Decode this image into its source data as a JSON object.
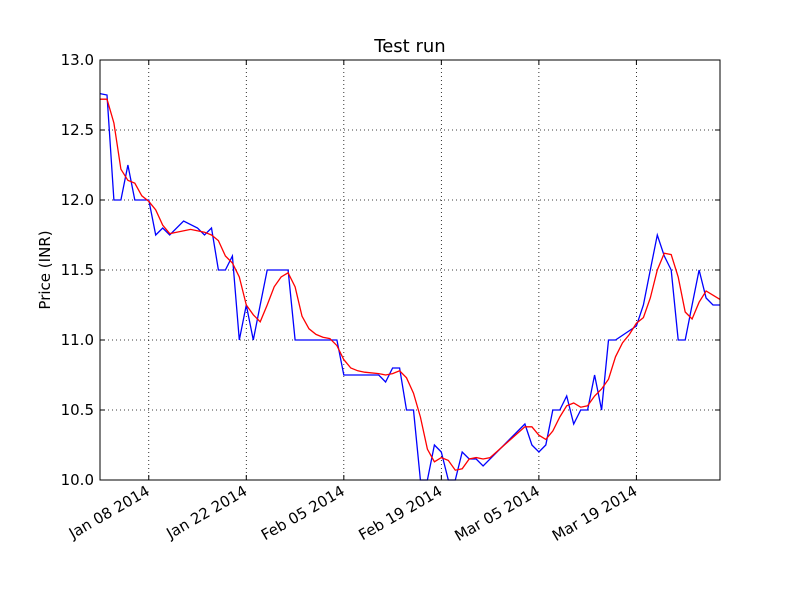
{
  "chart_data": {
    "type": "line",
    "title": "Test run",
    "ylabel": "Price (INR)",
    "xlabel": "",
    "ylim": [
      10.0,
      13.0
    ],
    "xlim": [
      "2014-01-01",
      "2014-03-31"
    ],
    "yticks": [
      "10.0",
      "10.5",
      "11.0",
      "11.5",
      "12.0",
      "12.5",
      "13.0"
    ],
    "xticks": [
      {
        "date": "2014-01-08",
        "label": "Jan 08 2014"
      },
      {
        "date": "2014-01-22",
        "label": "Jan 22 2014"
      },
      {
        "date": "2014-02-05",
        "label": "Feb 05 2014"
      },
      {
        "date": "2014-02-19",
        "label": "Feb 19 2014"
      },
      {
        "date": "2014-03-05",
        "label": "Mar 05 2014"
      },
      {
        "date": "2014-03-19",
        "label": "Mar 19 2014"
      }
    ],
    "grid": true,
    "series": [
      {
        "color": "#0000ff",
        "points": [
          [
            "2014-01-01",
            12.76
          ],
          [
            "2014-01-02",
            12.75
          ],
          [
            "2014-01-03",
            12.0
          ],
          [
            "2014-01-04",
            12.0
          ],
          [
            "2014-01-05",
            12.25
          ],
          [
            "2014-01-06",
            12.0
          ],
          [
            "2014-01-07",
            12.0
          ],
          [
            "2014-01-08",
            12.0
          ],
          [
            "2014-01-09",
            11.75
          ],
          [
            "2014-01-10",
            11.8
          ],
          [
            "2014-01-11",
            11.75
          ],
          [
            "2014-01-13",
            11.85
          ],
          [
            "2014-01-15",
            11.8
          ],
          [
            "2014-01-16",
            11.75
          ],
          [
            "2014-01-17",
            11.8
          ],
          [
            "2014-01-18",
            11.5
          ],
          [
            "2014-01-19",
            11.5
          ],
          [
            "2014-01-20",
            11.6
          ],
          [
            "2014-01-21",
            11.0
          ],
          [
            "2014-01-22",
            11.25
          ],
          [
            "2014-01-23",
            11.0
          ],
          [
            "2014-01-24",
            11.25
          ],
          [
            "2014-01-25",
            11.5
          ],
          [
            "2014-01-28",
            11.5
          ],
          [
            "2014-01-29",
            11.0
          ],
          [
            "2014-02-03",
            11.0
          ],
          [
            "2014-02-04",
            11.0
          ],
          [
            "2014-02-05",
            10.75
          ],
          [
            "2014-02-10",
            10.75
          ],
          [
            "2014-02-11",
            10.7
          ],
          [
            "2014-02-12",
            10.8
          ],
          [
            "2014-02-13",
            10.8
          ],
          [
            "2014-02-14",
            10.5
          ],
          [
            "2014-02-15",
            10.5
          ],
          [
            "2014-02-16",
            10.0
          ],
          [
            "2014-02-17",
            10.0
          ],
          [
            "2014-02-18",
            10.25
          ],
          [
            "2014-02-19",
            10.2
          ],
          [
            "2014-02-20",
            10.0
          ],
          [
            "2014-02-21",
            10.0
          ],
          [
            "2014-02-22",
            10.2
          ],
          [
            "2014-02-23",
            10.15
          ],
          [
            "2014-02-24",
            10.15
          ],
          [
            "2014-02-25",
            10.1
          ],
          [
            "2014-03-03",
            10.4
          ],
          [
            "2014-03-04",
            10.25
          ],
          [
            "2014-03-05",
            10.2
          ],
          [
            "2014-03-06",
            10.25
          ],
          [
            "2014-03-07",
            10.5
          ],
          [
            "2014-03-08",
            10.5
          ],
          [
            "2014-03-09",
            10.6
          ],
          [
            "2014-03-10",
            10.4
          ],
          [
            "2014-03-11",
            10.5
          ],
          [
            "2014-03-12",
            10.5
          ],
          [
            "2014-03-13",
            10.75
          ],
          [
            "2014-03-14",
            10.5
          ],
          [
            "2014-03-15",
            11.0
          ],
          [
            "2014-03-16",
            11.0
          ],
          [
            "2014-03-19",
            11.1
          ],
          [
            "2014-03-20",
            11.25
          ],
          [
            "2014-03-21",
            11.5
          ],
          [
            "2014-03-22",
            11.75
          ],
          [
            "2014-03-23",
            11.6
          ],
          [
            "2014-03-24",
            11.5
          ],
          [
            "2014-03-25",
            11.0
          ],
          [
            "2014-03-26",
            11.0
          ],
          [
            "2014-03-27",
            11.25
          ],
          [
            "2014-03-28",
            11.5
          ],
          [
            "2014-03-29",
            11.3
          ],
          [
            "2014-03-30",
            11.25
          ],
          [
            "2014-03-31",
            11.25
          ]
        ]
      },
      {
        "color": "#ff0000",
        "points": [
          [
            "2014-01-01",
            12.72
          ],
          [
            "2014-01-02",
            12.72
          ],
          [
            "2014-01-03",
            12.55
          ],
          [
            "2014-01-04",
            12.22
          ],
          [
            "2014-01-05",
            12.14
          ],
          [
            "2014-01-06",
            12.12
          ],
          [
            "2014-01-07",
            12.03
          ],
          [
            "2014-01-08",
            11.99
          ],
          [
            "2014-01-09",
            11.93
          ],
          [
            "2014-01-10",
            11.82
          ],
          [
            "2014-01-11",
            11.76
          ],
          [
            "2014-01-12",
            11.77
          ],
          [
            "2014-01-14",
            11.79
          ],
          [
            "2014-01-16",
            11.77
          ],
          [
            "2014-01-17",
            11.75
          ],
          [
            "2014-01-18",
            11.71
          ],
          [
            "2014-01-19",
            11.6
          ],
          [
            "2014-01-20",
            11.55
          ],
          [
            "2014-01-21",
            11.45
          ],
          [
            "2014-01-22",
            11.25
          ],
          [
            "2014-01-23",
            11.18
          ],
          [
            "2014-01-24",
            11.13
          ],
          [
            "2014-01-25",
            11.25
          ],
          [
            "2014-01-26",
            11.38
          ],
          [
            "2014-01-27",
            11.45
          ],
          [
            "2014-01-28",
            11.48
          ],
          [
            "2014-01-29",
            11.38
          ],
          [
            "2014-01-30",
            11.17
          ],
          [
            "2014-01-31",
            11.08
          ],
          [
            "2014-02-01",
            11.04
          ],
          [
            "2014-02-02",
            11.02
          ],
          [
            "2014-02-03",
            11.01
          ],
          [
            "2014-02-04",
            10.96
          ],
          [
            "2014-02-05",
            10.86
          ],
          [
            "2014-02-06",
            10.8
          ],
          [
            "2014-02-07",
            10.78
          ],
          [
            "2014-02-08",
            10.77
          ],
          [
            "2014-02-10",
            10.76
          ],
          [
            "2014-02-11",
            10.75
          ],
          [
            "2014-02-12",
            10.76
          ],
          [
            "2014-02-13",
            10.78
          ],
          [
            "2014-02-14",
            10.73
          ],
          [
            "2014-02-15",
            10.62
          ],
          [
            "2014-02-16",
            10.45
          ],
          [
            "2014-02-17",
            10.22
          ],
          [
            "2014-02-18",
            10.13
          ],
          [
            "2014-02-19",
            10.16
          ],
          [
            "2014-02-20",
            10.14
          ],
          [
            "2014-02-21",
            10.07
          ],
          [
            "2014-02-22",
            10.08
          ],
          [
            "2014-02-23",
            10.15
          ],
          [
            "2014-02-24",
            10.16
          ],
          [
            "2014-02-25",
            10.15
          ],
          [
            "2014-02-26",
            10.16
          ],
          [
            "2014-03-03",
            10.38
          ],
          [
            "2014-03-04",
            10.38
          ],
          [
            "2014-03-05",
            10.32
          ],
          [
            "2014-03-06",
            10.29
          ],
          [
            "2014-03-07",
            10.35
          ],
          [
            "2014-03-08",
            10.45
          ],
          [
            "2014-03-09",
            10.53
          ],
          [
            "2014-03-10",
            10.55
          ],
          [
            "2014-03-11",
            10.52
          ],
          [
            "2014-03-12",
            10.53
          ],
          [
            "2014-03-13",
            10.6
          ],
          [
            "2014-03-14",
            10.65
          ],
          [
            "2014-03-15",
            10.72
          ],
          [
            "2014-03-16",
            10.88
          ],
          [
            "2014-03-17",
            10.98
          ],
          [
            "2014-03-18",
            11.04
          ],
          [
            "2014-03-19",
            11.12
          ],
          [
            "2014-03-20",
            11.16
          ],
          [
            "2014-03-21",
            11.3
          ],
          [
            "2014-03-22",
            11.5
          ],
          [
            "2014-03-23",
            11.62
          ],
          [
            "2014-03-24",
            11.61
          ],
          [
            "2014-03-25",
            11.45
          ],
          [
            "2014-03-26",
            11.2
          ],
          [
            "2014-03-27",
            11.15
          ],
          [
            "2014-03-28",
            11.27
          ],
          [
            "2014-03-29",
            11.35
          ],
          [
            "2014-03-30",
            11.32
          ],
          [
            "2014-03-31",
            11.29
          ]
        ]
      }
    ]
  }
}
